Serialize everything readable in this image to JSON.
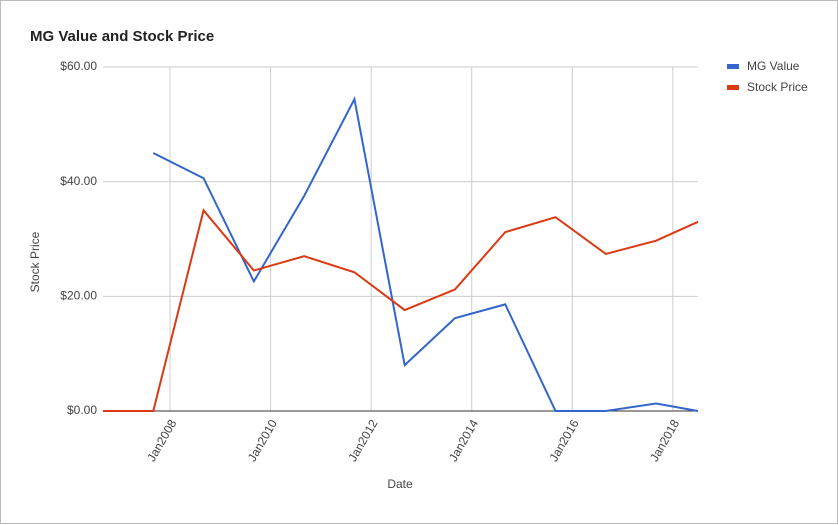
{
  "chart_data": {
    "type": "line",
    "title": "MG Value and Stock Price",
    "x_label": "Date",
    "y_label": "Stock Price",
    "x": [
      "2006-09",
      "2007-09",
      "2008-09",
      "2009-09",
      "2010-09",
      "2011-09",
      "2012-09",
      "2013-09",
      "2014-09",
      "2015-09",
      "2016-09",
      "2017-09",
      "2018-07"
    ],
    "xlim": [
      "2006-09",
      "2018-07"
    ],
    "xticks": [
      {
        "value": "2008-01",
        "label": "Jan2008"
      },
      {
        "value": "2010-01",
        "label": "Jan2010"
      },
      {
        "value": "2012-01",
        "label": "Jan2012"
      },
      {
        "value": "2014-01",
        "label": "Jan2014"
      },
      {
        "value": "2016-01",
        "label": "Jan2016"
      },
      {
        "value": "2018-01",
        "label": "Jan2018"
      }
    ],
    "ylim": [
      0,
      60
    ],
    "yticks": [
      {
        "value": 0,
        "label": "$0.00"
      },
      {
        "value": 20,
        "label": "$20.00"
      },
      {
        "value": 40,
        "label": "$40.00"
      },
      {
        "value": 60,
        "label": "$60.00"
      }
    ],
    "grid": true,
    "legend": "right",
    "series": [
      {
        "name": "MG Value",
        "color": "#3366cc",
        "values": [
          null,
          45,
          40.6,
          22.6,
          37.5,
          54.4,
          8,
          16.2,
          18.6,
          0,
          0,
          1.3,
          0
        ]
      },
      {
        "name": "Stock Price",
        "color": "#dc3912",
        "values": [
          0,
          0,
          35,
          24.5,
          27,
          24.2,
          17.6,
          21.2,
          31.2,
          33.8,
          27.4,
          29.7,
          33
        ]
      }
    ]
  }
}
